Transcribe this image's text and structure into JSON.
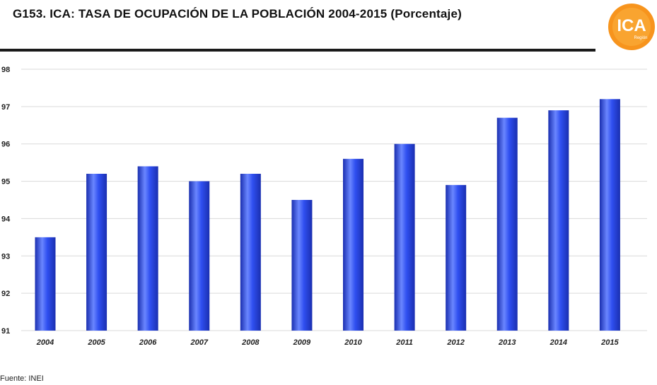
{
  "header": {
    "title": "G153. ICA: TASA DE OCUPACIÓN DE LA POBLACIÓN 2004-2015 (Porcentaje)",
    "logo_text": "ICA",
    "logo_subtext": "Región"
  },
  "footer": {
    "source": "Fuente: INEI"
  },
  "colors": {
    "bar": "#2f4ff0",
    "bar_highlight": "#6a86ff",
    "bar_shadow": "#1a2fb0",
    "grid": "#d9d9d9",
    "logo_orange": "#f7941d"
  },
  "chart_data": {
    "type": "bar",
    "title": "G153. ICA: TASA DE OCUPACIÓN DE LA POBLACIÓN 2004-2015 (Porcentaje)",
    "xlabel": "",
    "ylabel": "",
    "categories": [
      "2004",
      "2005",
      "2006",
      "2007",
      "2008",
      "2009",
      "2010",
      "2011",
      "2012",
      "2013",
      "2014",
      "2015"
    ],
    "values": [
      93.5,
      95.2,
      95.4,
      95.0,
      95.2,
      94.5,
      95.6,
      96.0,
      94.9,
      96.7,
      96.9,
      97.2
    ],
    "ylim": [
      91,
      98
    ],
    "yticks": [
      "91",
      "92",
      "93",
      "94",
      "95",
      "96",
      "97",
      "98"
    ],
    "grid": true,
    "legend": "none"
  }
}
